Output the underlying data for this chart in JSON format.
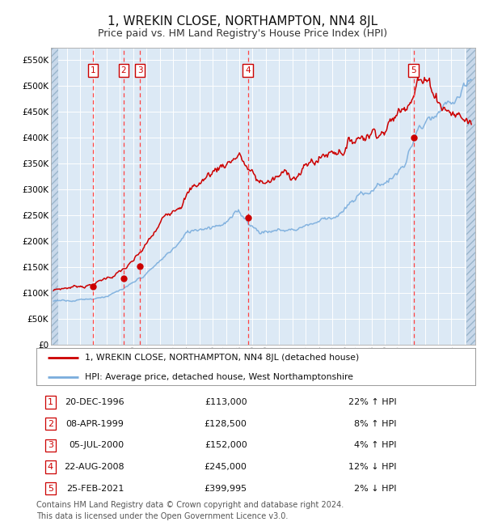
{
  "title": "1, WREKIN CLOSE, NORTHAMPTON, NN4 8JL",
  "subtitle": "Price paid vs. HM Land Registry's House Price Index (HPI)",
  "title_fontsize": 11,
  "subtitle_fontsize": 9,
  "background_color": "#dce9f5",
  "ylim": [
    0,
    575000
  ],
  "yticks": [
    0,
    50000,
    100000,
    150000,
    200000,
    250000,
    300000,
    350000,
    400000,
    450000,
    500000,
    550000
  ],
  "ytick_labels": [
    "£0",
    "£50K",
    "£100K",
    "£150K",
    "£200K",
    "£250K",
    "£300K",
    "£350K",
    "£400K",
    "£450K",
    "£500K",
    "£550K"
  ],
  "xlim_start": 1993.8,
  "xlim_end": 2025.8,
  "hpi_color": "#7aaddd",
  "price_color": "#cc0000",
  "sale_vline_color": "#ff4444",
  "sales": [
    {
      "id": 1,
      "date_str": "20-DEC-1996",
      "year": 1996.97,
      "price": 113000,
      "pct": "22%",
      "dir": "↑"
    },
    {
      "id": 2,
      "date_str": "08-APR-1999",
      "year": 1999.27,
      "price": 128500,
      "pct": "8%",
      "dir": "↑"
    },
    {
      "id": 3,
      "date_str": "05-JUL-2000",
      "year": 2000.51,
      "price": 152000,
      "pct": "4%",
      "dir": "↑"
    },
    {
      "id": 4,
      "date_str": "22-AUG-2008",
      "year": 2008.65,
      "price": 245000,
      "pct": "12%",
      "dir": "↓"
    },
    {
      "id": 5,
      "date_str": "25-FEB-2021",
      "year": 2021.15,
      "price": 399995,
      "pct": "2%",
      "dir": "↓"
    }
  ],
  "legend_label_red": "1, WREKIN CLOSE, NORTHAMPTON, NN4 8JL (detached house)",
  "legend_label_blue": "HPI: Average price, detached house, West Northamptonshire",
  "footer": "Contains HM Land Registry data © Crown copyright and database right 2024.\nThis data is licensed under the Open Government Licence v3.0.",
  "footer_fontsize": 7,
  "xtick_years": [
    1994,
    1995,
    1996,
    1997,
    1998,
    1999,
    2000,
    2001,
    2002,
    2003,
    2004,
    2005,
    2006,
    2007,
    2008,
    2009,
    2010,
    2011,
    2012,
    2013,
    2014,
    2015,
    2016,
    2017,
    2018,
    2019,
    2020,
    2021,
    2022,
    2023,
    2024,
    2025
  ]
}
